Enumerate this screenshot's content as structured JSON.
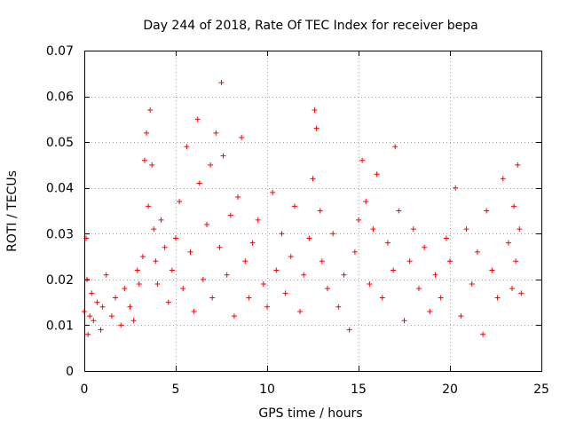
{
  "chart_data": {
    "type": "scatter",
    "title": "Day 244 of 2018, Rate Of TEC Index for receiver bepa",
    "xlabel": "GPS time / hours",
    "ylabel": "ROTI / TECUs",
    "xlim": [
      0,
      25
    ],
    "ylim": [
      0,
      0.07
    ],
    "xticks": [
      0,
      5,
      10,
      15,
      20,
      25
    ],
    "xtick_labels": [
      "0",
      "5",
      "10",
      "15",
      "20",
      "25"
    ],
    "yticks": [
      0,
      0.01,
      0.02,
      0.03,
      0.04,
      0.05,
      0.06,
      0.07
    ],
    "ytick_labels": [
      "0",
      "0.01",
      "0.02",
      "0.03",
      "0.04",
      "0.05",
      "0.06",
      "0.07"
    ],
    "grid": true,
    "marker": "+",
    "color": "#ff0000",
    "series": [
      {
        "name": "ROTI",
        "x": [
          0.0,
          0.1,
          0.15,
          0.2,
          0.3,
          0.4,
          0.5,
          0.7,
          0.9,
          1.0,
          1.2,
          1.5,
          1.7,
          2.0,
          2.2,
          2.5,
          2.7,
          2.9,
          3.0,
          3.2,
          3.3,
          3.4,
          3.5,
          3.6,
          3.7,
          3.8,
          3.9,
          4.0,
          4.2,
          4.4,
          4.6,
          4.8,
          5.0,
          5.2,
          5.4,
          5.6,
          5.8,
          6.0,
          6.2,
          6.3,
          6.5,
          6.7,
          6.9,
          7.0,
          7.2,
          7.4,
          7.5,
          7.6,
          7.8,
          8.0,
          8.2,
          8.4,
          8.6,
          8.8,
          9.0,
          9.2,
          9.5,
          9.8,
          10.0,
          10.3,
          10.5,
          10.8,
          11.0,
          11.3,
          11.5,
          11.8,
          12.0,
          12.3,
          12.5,
          12.6,
          12.7,
          12.9,
          13.0,
          13.3,
          13.6,
          13.9,
          14.2,
          14.5,
          14.8,
          15.0,
          15.2,
          15.4,
          15.6,
          15.8,
          16.0,
          16.3,
          16.6,
          16.9,
          17.0,
          17.2,
          17.5,
          17.8,
          18.0,
          18.3,
          18.6,
          18.9,
          19.2,
          19.5,
          19.8,
          20.0,
          20.3,
          20.6,
          20.9,
          21.2,
          21.5,
          21.8,
          22.0,
          22.3,
          22.6,
          22.9,
          23.2,
          23.4,
          23.5,
          23.6,
          23.7,
          23.8,
          23.9
        ],
        "y": [
          0.013,
          0.029,
          0.02,
          0.008,
          0.012,
          0.017,
          0.011,
          0.015,
          0.009,
          0.014,
          0.021,
          0.012,
          0.016,
          0.01,
          0.018,
          0.014,
          0.011,
          0.022,
          0.019,
          0.025,
          0.046,
          0.052,
          0.036,
          0.057,
          0.045,
          0.031,
          0.024,
          0.019,
          0.033,
          0.027,
          0.015,
          0.022,
          0.029,
          0.037,
          0.018,
          0.049,
          0.026,
          0.013,
          0.055,
          0.041,
          0.02,
          0.032,
          0.045,
          0.016,
          0.052,
          0.027,
          0.063,
          0.047,
          0.021,
          0.034,
          0.012,
          0.038,
          0.051,
          0.024,
          0.016,
          0.028,
          0.033,
          0.019,
          0.014,
          0.039,
          0.022,
          0.03,
          0.017,
          0.025,
          0.036,
          0.013,
          0.021,
          0.029,
          0.042,
          0.057,
          0.053,
          0.035,
          0.024,
          0.018,
          0.03,
          0.014,
          0.021,
          0.009,
          0.026,
          0.033,
          0.046,
          0.037,
          0.019,
          0.031,
          0.043,
          0.016,
          0.028,
          0.022,
          0.049,
          0.035,
          0.011,
          0.024,
          0.031,
          0.018,
          0.027,
          0.013,
          0.021,
          0.016,
          0.029,
          0.024,
          0.04,
          0.012,
          0.031,
          0.019,
          0.026,
          0.008,
          0.035,
          0.022,
          0.016,
          0.042,
          0.028,
          0.018,
          0.036,
          0.024,
          0.045,
          0.031,
          0.017
        ]
      }
    ]
  }
}
